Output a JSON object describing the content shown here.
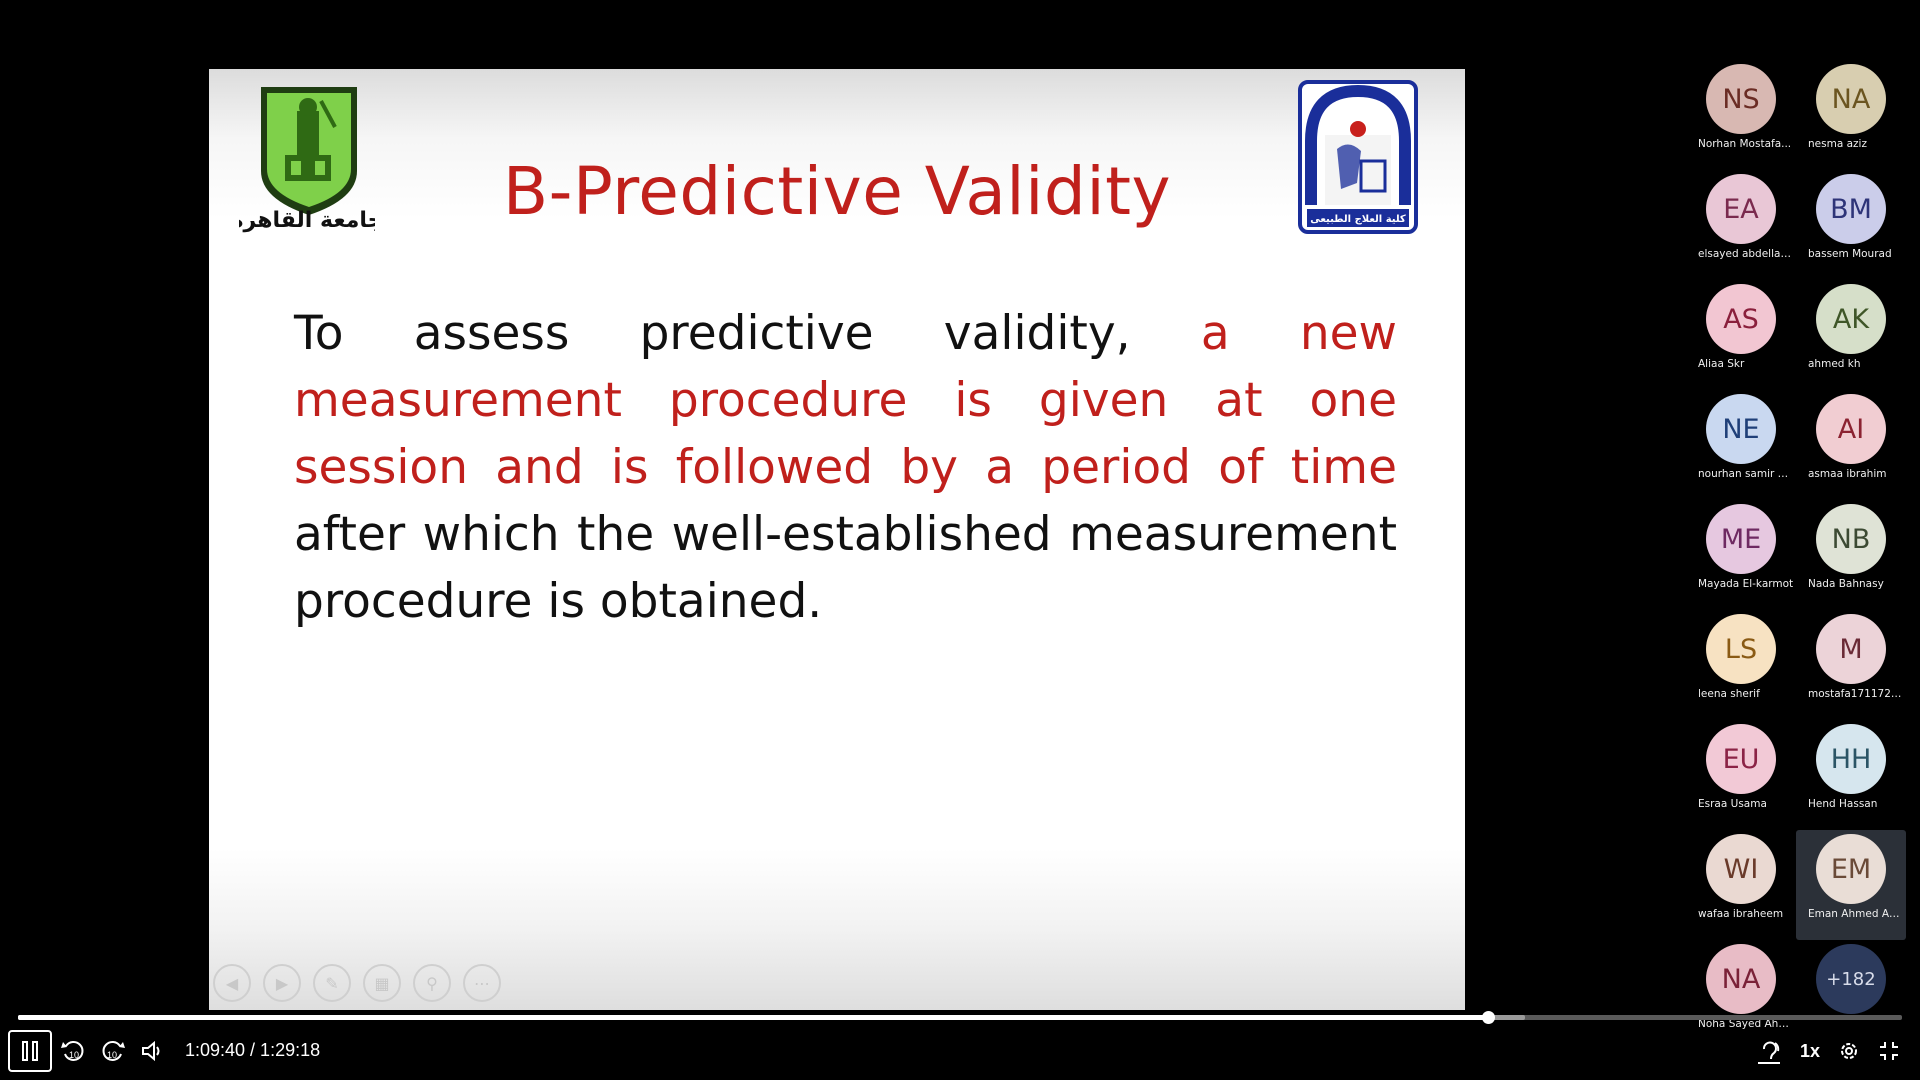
{
  "slide": {
    "title": "B-Predictive Validity",
    "body_prefix": "To assess predictive validity, ",
    "body_highlight": "a new measurement procedure is given at one session and is followed by a period of time",
    "body_suffix": " after which the well-established measurement procedure is obtained.",
    "logo_left_text": "جامعة القاهرة",
    "logo_right_text": "كلية العلاج الطبيعى",
    "colors": {
      "title": "#c0201c",
      "highlight": "#c0201c",
      "text": "#111111"
    }
  },
  "participants": [
    {
      "initials": "NS",
      "name": "Norhan Mostafa...",
      "bg": "#d8b8b2",
      "fg": "#6a2c24"
    },
    {
      "initials": "NA",
      "name": "nesma aziz",
      "bg": "#d8ceb0",
      "fg": "#6b5520"
    },
    {
      "initials": "EA",
      "name": "elsayed abdellatife",
      "bg": "#e9c7d6",
      "fg": "#7a2a4e"
    },
    {
      "initials": "BM",
      "name": "bassem Mourad",
      "bg": "#cbcdea",
      "fg": "#2e3478"
    },
    {
      "initials": "AS",
      "name": "Aliaa Skr",
      "bg": "#f2c6d2",
      "fg": "#8a1f3c"
    },
    {
      "initials": "AK",
      "name": "ahmed kh",
      "bg": "#d6dfc9",
      "fg": "#3f5628"
    },
    {
      "initials": "NE",
      "name": "nourhan samir Eb...",
      "bg": "#c9d8f0",
      "fg": "#1f3f78"
    },
    {
      "initials": "AI",
      "name": "asmaa ibrahim",
      "bg": "#f1cdd2",
      "fg": "#8b2231"
    },
    {
      "initials": "ME",
      "name": "Mayada El-karmot",
      "bg": "#e6c8e0",
      "fg": "#6e2a62"
    },
    {
      "initials": "NB",
      "name": "Nada Bahnasy",
      "bg": "#dfe3d6",
      "fg": "#3c4a33"
    },
    {
      "initials": "LS",
      "name": "leena sherif",
      "bg": "#f7e2c2",
      "fg": "#8a5a14"
    },
    {
      "initials": "M",
      "name": "mostafa171172@b...",
      "bg": "#ecd3d8",
      "fg": "#6a2a36"
    },
    {
      "initials": "EU",
      "name": "Esraa Usama",
      "bg": "#f2c9d6",
      "fg": "#8b2346"
    },
    {
      "initials": "HH",
      "name": "Hend Hassan",
      "bg": "#d6e6ee",
      "fg": "#2b5566"
    },
    {
      "initials": "WI",
      "name": "wafaa ibraheem",
      "bg": "#ead9d2",
      "fg": "#6a3a2a"
    },
    {
      "initials": "EM",
      "name": "Eman Ahmed Ab...",
      "bg": "#e9ddd6",
      "fg": "#6a4a38",
      "active": true
    },
    {
      "initials": "NA",
      "name": "Noha Sayed Ahm...",
      "bg": "#e8bcc6",
      "fg": "#7a2238"
    },
    {
      "initials": "+182",
      "name": "",
      "bg": "#2c3a5c",
      "fg": "#d8dcea"
    }
  ],
  "player": {
    "time_display": "1:09:40 / 1:29:18",
    "speed_label": "1x",
    "progress_fraction": 0.78,
    "buffer_fraction": 0.8
  }
}
